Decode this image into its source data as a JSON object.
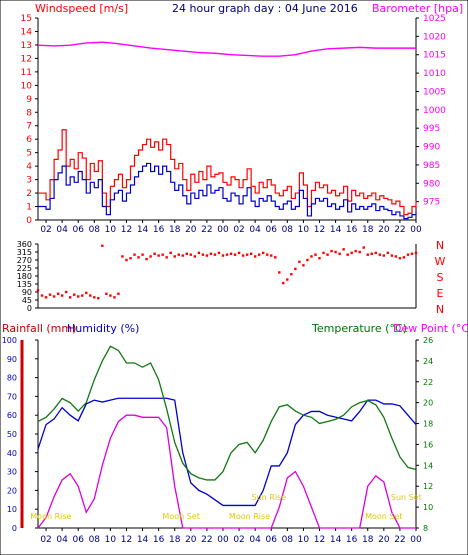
{
  "header": {
    "left_title": "Windspeed [m/s]",
    "center_title": "24 hour graph day : 04 June 2016",
    "right_title": "Barometer [hpa]"
  },
  "colors": {
    "wind_gust": "#ff0000",
    "wind_avg": "#0000cc",
    "barometer": "#ff00ff",
    "direction": "#ff0000",
    "rain": "#cc0000",
    "humidity": "#0000cc",
    "temperature": "#007700",
    "dewpoint": "#ff00ff",
    "humidity_series": "#0000cc",
    "temp_series": "#117711",
    "dew_series": "#dd00dd",
    "sun_moon": "#ddcc00",
    "axis": "#000000"
  },
  "x_ticks": [
    "02",
    "04",
    "06",
    "08",
    "10",
    "12",
    "14",
    "16",
    "18",
    "20",
    "22",
    "00",
    "02",
    "04",
    "06",
    "08",
    "10",
    "12",
    "14",
    "16",
    "18",
    "20",
    "22",
    "00"
  ],
  "bottom_header": {
    "rain_label": "Rainfall (mm)",
    "humidity_label": "Humidity (%)",
    "temperature_label": "Temperature (°C)",
    "dewpoint_label": "Dew Point (°C)"
  },
  "events": [
    {
      "label": "Moon Rise",
      "hour": 1.6
    },
    {
      "label": "Moon Set",
      "hour": 17.8
    },
    {
      "label": "Moon Rise",
      "hour": 26.3
    },
    {
      "label": "Sun Rise",
      "hour": 28.7
    },
    {
      "label": "Moon Set",
      "hour": 43.0
    },
    {
      "label": "Sun Set",
      "hour": 45.8
    }
  ],
  "chart_data": [
    {
      "type": "line",
      "title": "24 hour graph day : 04 June 2016",
      "x_domain_hours": [
        0,
        47
      ],
      "yleft": {
        "label": "Windspeed [m/s]",
        "range": [
          0,
          15
        ],
        "ticks": [
          0,
          1,
          2,
          3,
          4,
          5,
          6,
          7,
          8,
          9,
          10,
          11,
          12,
          13,
          14,
          15
        ]
      },
      "yright": {
        "label": "Barometer [hpa]",
        "range": [
          970,
          1025
        ],
        "ticks": [
          975,
          980,
          985,
          990,
          995,
          1000,
          1005,
          1010,
          1015,
          1020,
          1025
        ]
      },
      "series": [
        {
          "name": "Windspeed",
          "axis": "left",
          "hours": [
            0,
            1,
            1.5,
            2,
            2.5,
            3,
            3.5,
            4,
            4.5,
            5,
            5.5,
            6,
            6.5,
            7,
            7.5,
            8,
            8.5,
            9,
            9.5,
            10,
            10.5,
            11,
            11.5,
            12,
            12.5,
            13,
            13.5,
            14,
            14.5,
            15,
            15.5,
            16,
            16.5,
            17,
            17.5,
            18,
            18.5,
            19,
            19.5,
            20,
            20.5,
            21,
            21.5,
            22,
            22.5,
            23,
            23.5,
            24,
            24.5,
            25,
            25.5,
            26,
            26.5,
            27,
            27.5,
            28,
            28.5,
            29,
            29.5,
            30,
            30.5,
            31,
            31.5,
            32,
            32.5,
            33,
            33.5,
            34,
            34.5,
            35,
            35.5,
            36,
            36.5,
            37,
            37.5,
            38,
            38.5,
            39,
            39.5,
            40,
            40.5,
            41,
            41.5,
            42,
            42.5,
            43,
            43.5,
            44,
            44.5,
            45,
            45.5,
            46,
            46.5,
            47
          ],
          "values": [
            2,
            1.5,
            3,
            4.5,
            5.2,
            6.7,
            4,
            4.5,
            3.8,
            5,
            4.6,
            3,
            4.2,
            3.6,
            4.4,
            2,
            1,
            2.5,
            3,
            3.4,
            2.4,
            3,
            4,
            4.8,
            5.2,
            5.6,
            6,
            5.4,
            5.8,
            5.2,
            6,
            5.6,
            4.5,
            3.8,
            4.2,
            3,
            2.2,
            3.4,
            2.8,
            3.6,
            3,
            4,
            3.2,
            3.4,
            3.5,
            2.8,
            2.6,
            3.2,
            3,
            2.4,
            3,
            3.8,
            2.5,
            2,
            2.8,
            2.4,
            3,
            2.6,
            2,
            1.8,
            2.2,
            2.5,
            1.6,
            2,
            3.5,
            2.6,
            1,
            2.2,
            2.8,
            2.4,
            2.6,
            2,
            2.2,
            1.8,
            2,
            2.5,
            1.4,
            2.2,
            1.8,
            2,
            1.6,
            1.8,
            2,
            1.5,
            1.8,
            1.6,
            1.5,
            1.2,
            1.4,
            1,
            0.4,
            0.5,
            1,
            1.4
          ]
        },
        {
          "name": "Average",
          "axis": "left",
          "hours": [
            0,
            1,
            1.5,
            2,
            2.5,
            3,
            3.5,
            4,
            4.5,
            5,
            5.5,
            6,
            6.5,
            7,
            7.5,
            8,
            8.5,
            9,
            9.5,
            10,
            10.5,
            11,
            11.5,
            12,
            12.5,
            13,
            13.5,
            14,
            14.5,
            15,
            15.5,
            16,
            16.5,
            17,
            17.5,
            18,
            18.5,
            19,
            19.5,
            20,
            20.5,
            21,
            21.5,
            22,
            22.5,
            23,
            23.5,
            24,
            24.5,
            25,
            25.5,
            26,
            26.5,
            27,
            27.5,
            28,
            28.5,
            29,
            29.5,
            30,
            30.5,
            31,
            31.5,
            32,
            32.5,
            33,
            33.5,
            34,
            34.5,
            35,
            35.5,
            36,
            36.5,
            37,
            37.5,
            38,
            38.5,
            39,
            39.5,
            40,
            40.5,
            41,
            41.5,
            42,
            42.5,
            43,
            43.5,
            44,
            44.5,
            45,
            45.5,
            46,
            46.5,
            47
          ],
          "values": [
            1,
            0.8,
            1.6,
            3,
            3.5,
            4,
            2.6,
            3.2,
            2.8,
            3.6,
            3,
            2,
            2.8,
            2.4,
            3,
            1,
            0.4,
            1.5,
            2,
            2.2,
            1.4,
            2,
            2.6,
            3.2,
            3.6,
            4,
            4.2,
            3.6,
            4,
            3.4,
            4,
            3.6,
            2.8,
            2.2,
            2.6,
            1.8,
            1.2,
            2,
            1.6,
            2.2,
            1.8,
            2.6,
            2,
            2.2,
            2.4,
            1.6,
            1.4,
            2,
            1.8,
            1.2,
            1.8,
            2.4,
            1.4,
            1,
            1.6,
            1.4,
            1.8,
            1.4,
            1,
            0.8,
            1.2,
            1.4,
            0.8,
            1,
            2.2,
            1.6,
            0.3,
            1.2,
            1.6,
            1.4,
            1.6,
            1,
            1.2,
            0.8,
            1,
            1.5,
            0.6,
            1.2,
            0.8,
            1,
            0.8,
            1,
            1.2,
            0.7,
            1,
            0.8,
            0.7,
            0.4,
            0.6,
            0.3,
            0.1,
            0.2,
            0.4,
            0.6
          ]
        },
        {
          "name": "Barometer",
          "axis": "right",
          "hours": [
            0,
            2,
            4,
            6,
            8,
            10,
            12,
            14,
            16,
            18,
            20,
            22,
            24,
            26,
            28,
            30,
            32,
            34,
            36,
            38,
            40,
            42,
            44,
            46,
            47
          ],
          "values": [
            1017.6,
            1017.4,
            1017.6,
            1018.2,
            1018.4,
            1018.0,
            1017.4,
            1016.8,
            1016.4,
            1016.0,
            1015.6,
            1015.4,
            1015.0,
            1014.8,
            1014.6,
            1014.6,
            1015.0,
            1016.0,
            1016.6,
            1016.8,
            1017.0,
            1016.8,
            1016.8,
            1016.8,
            1016.8
          ]
        }
      ]
    },
    {
      "type": "scatter",
      "title": "",
      "yright_labels": [
        "N",
        "W",
        "S",
        "E",
        "N"
      ],
      "yleft": {
        "label": "",
        "range": [
          0,
          360
        ],
        "ticks": [
          0,
          45,
          90,
          135,
          180,
          225,
          270,
          315,
          360
        ]
      },
      "series": [
        {
          "name": "Direction",
          "hours": [
            0,
            0.5,
            1,
            1.5,
            2,
            2.5,
            3,
            3.5,
            4,
            4.5,
            5,
            5.5,
            6,
            6.5,
            7,
            7.5,
            8,
            8.5,
            9,
            9.5,
            10,
            10.5,
            11,
            11.5,
            12,
            12.5,
            13,
            13.5,
            14,
            14.5,
            15,
            15.5,
            16,
            16.5,
            17,
            17.5,
            18,
            18.5,
            19,
            19.5,
            20,
            20.5,
            21,
            21.5,
            22,
            22.5,
            23,
            23.5,
            24,
            24.5,
            25,
            25.5,
            26,
            26.5,
            27,
            27.5,
            28,
            28.5,
            29,
            29.5,
            30,
            30.5,
            31,
            31.5,
            32,
            32.5,
            33,
            33.5,
            34,
            34.5,
            35,
            35.5,
            36,
            36.5,
            37,
            37.5,
            38,
            38.5,
            39,
            39.5,
            40,
            40.5,
            41,
            41.5,
            42,
            42.5,
            43,
            43.5,
            44,
            44.5,
            45,
            45.5,
            46,
            46.5,
            47
          ],
          "values": [
            100,
            70,
            60,
            75,
            65,
            80,
            70,
            90,
            60,
            75,
            65,
            70,
            85,
            70,
            60,
            55,
            350,
            80,
            70,
            60,
            80,
            290,
            270,
            280,
            300,
            285,
            300,
            275,
            290,
            305,
            295,
            300,
            285,
            310,
            290,
            300,
            295,
            305,
            300,
            290,
            310,
            300,
            295,
            305,
            300,
            310,
            295,
            300,
            305,
            300,
            310,
            295,
            300,
            305,
            290,
            300,
            310,
            300,
            295,
            285,
            200,
            140,
            160,
            190,
            220,
            260,
            240,
            270,
            290,
            300,
            280,
            310,
            300,
            320,
            315,
            305,
            330,
            300,
            310,
            320,
            315,
            340,
            300,
            305,
            310,
            300,
            295,
            310,
            295,
            290,
            280,
            285,
            300,
            305,
            310
          ]
        }
      ]
    },
    {
      "type": "line",
      "title": "",
      "yleft": {
        "label": "Rainfall (mm)",
        "range": [
          0,
          100
        ],
        "ticks": [
          0,
          10,
          20,
          30,
          40,
          50,
          60,
          70,
          80,
          90,
          100
        ]
      },
      "yright": {
        "label": "Temperature (°C)",
        "range": [
          8,
          26
        ],
        "ticks": [
          8,
          10,
          12,
          14,
          16,
          18,
          20,
          22,
          24,
          26
        ]
      },
      "series": [
        {
          "name": "Humidity",
          "axis": "left",
          "hours": [
            0,
            1,
            2,
            3,
            4,
            5,
            6,
            7,
            8,
            9,
            10,
            11,
            12,
            13,
            14,
            15,
            16,
            17,
            18,
            19,
            20,
            21,
            22,
            23,
            24,
            25,
            26,
            27,
            28,
            29,
            30,
            31,
            32,
            33,
            34,
            35,
            36,
            37,
            38,
            39,
            40,
            41,
            42,
            43,
            44,
            45,
            46,
            47
          ],
          "values": [
            42,
            55,
            58,
            64,
            60,
            57,
            66,
            68,
            67,
            68,
            69,
            69,
            69,
            69,
            69,
            69,
            69,
            68,
            40,
            24,
            20,
            18,
            15,
            12,
            12,
            12,
            12,
            12,
            20,
            33,
            33,
            40,
            55,
            60,
            62,
            62,
            60,
            59,
            58,
            57,
            62,
            68,
            68,
            66,
            66,
            65,
            60,
            55
          ]
        },
        {
          "name": "Temperature",
          "axis": "right",
          "hours": [
            0,
            1,
            2,
            3,
            4,
            5,
            6,
            7,
            8,
            9,
            10,
            11,
            12,
            13,
            14,
            15,
            16,
            17,
            18,
            19,
            20,
            21,
            22,
            23,
            24,
            25,
            26,
            27,
            28,
            29,
            30,
            31,
            32,
            33,
            34,
            35,
            36,
            37,
            38,
            39,
            40,
            41,
            42,
            43,
            44,
            45,
            46,
            47
          ],
          "values": [
            18.2,
            18.6,
            19.4,
            20.4,
            20.0,
            19.2,
            20.0,
            22.2,
            24.0,
            25.4,
            25.0,
            23.8,
            23.8,
            23.4,
            23.8,
            22.2,
            19.4,
            16.2,
            14.2,
            13.2,
            12.8,
            12.6,
            12.6,
            13.4,
            15.2,
            16.0,
            16.2,
            15.2,
            16.4,
            18.2,
            19.6,
            19.8,
            19.2,
            18.8,
            18.6,
            18.0,
            18.2,
            18.4,
            18.8,
            19.6,
            20.0,
            20.2,
            19.8,
            18.6,
            16.6,
            14.8,
            13.8,
            13.6
          ]
        },
        {
          "name": "Dew Point",
          "axis": "right",
          "hours": [
            0,
            1,
            2,
            3,
            4,
            5,
            6,
            7,
            8,
            9,
            10,
            11,
            12,
            13,
            14,
            15,
            16,
            17,
            18,
            19,
            20,
            21,
            22,
            23,
            24,
            25,
            26,
            27,
            28,
            29,
            30,
            31,
            32,
            33,
            34,
            35,
            36,
            37,
            38,
            39,
            40,
            41,
            42,
            43,
            44,
            45,
            46,
            47
          ],
          "values": [
            8,
            9,
            11,
            12.6,
            13.2,
            12,
            9.5,
            10.8,
            14,
            16.6,
            18.2,
            18.8,
            18.8,
            18.6,
            18.6,
            18.6,
            17.6,
            12,
            8,
            8,
            8,
            8,
            8,
            8,
            8,
            8,
            8,
            8,
            8,
            8,
            10,
            12.8,
            13.4,
            12,
            10,
            8,
            8,
            8,
            8,
            8,
            8,
            12,
            13,
            12.4,
            9.5,
            8,
            8,
            8
          ]
        }
      ]
    }
  ]
}
